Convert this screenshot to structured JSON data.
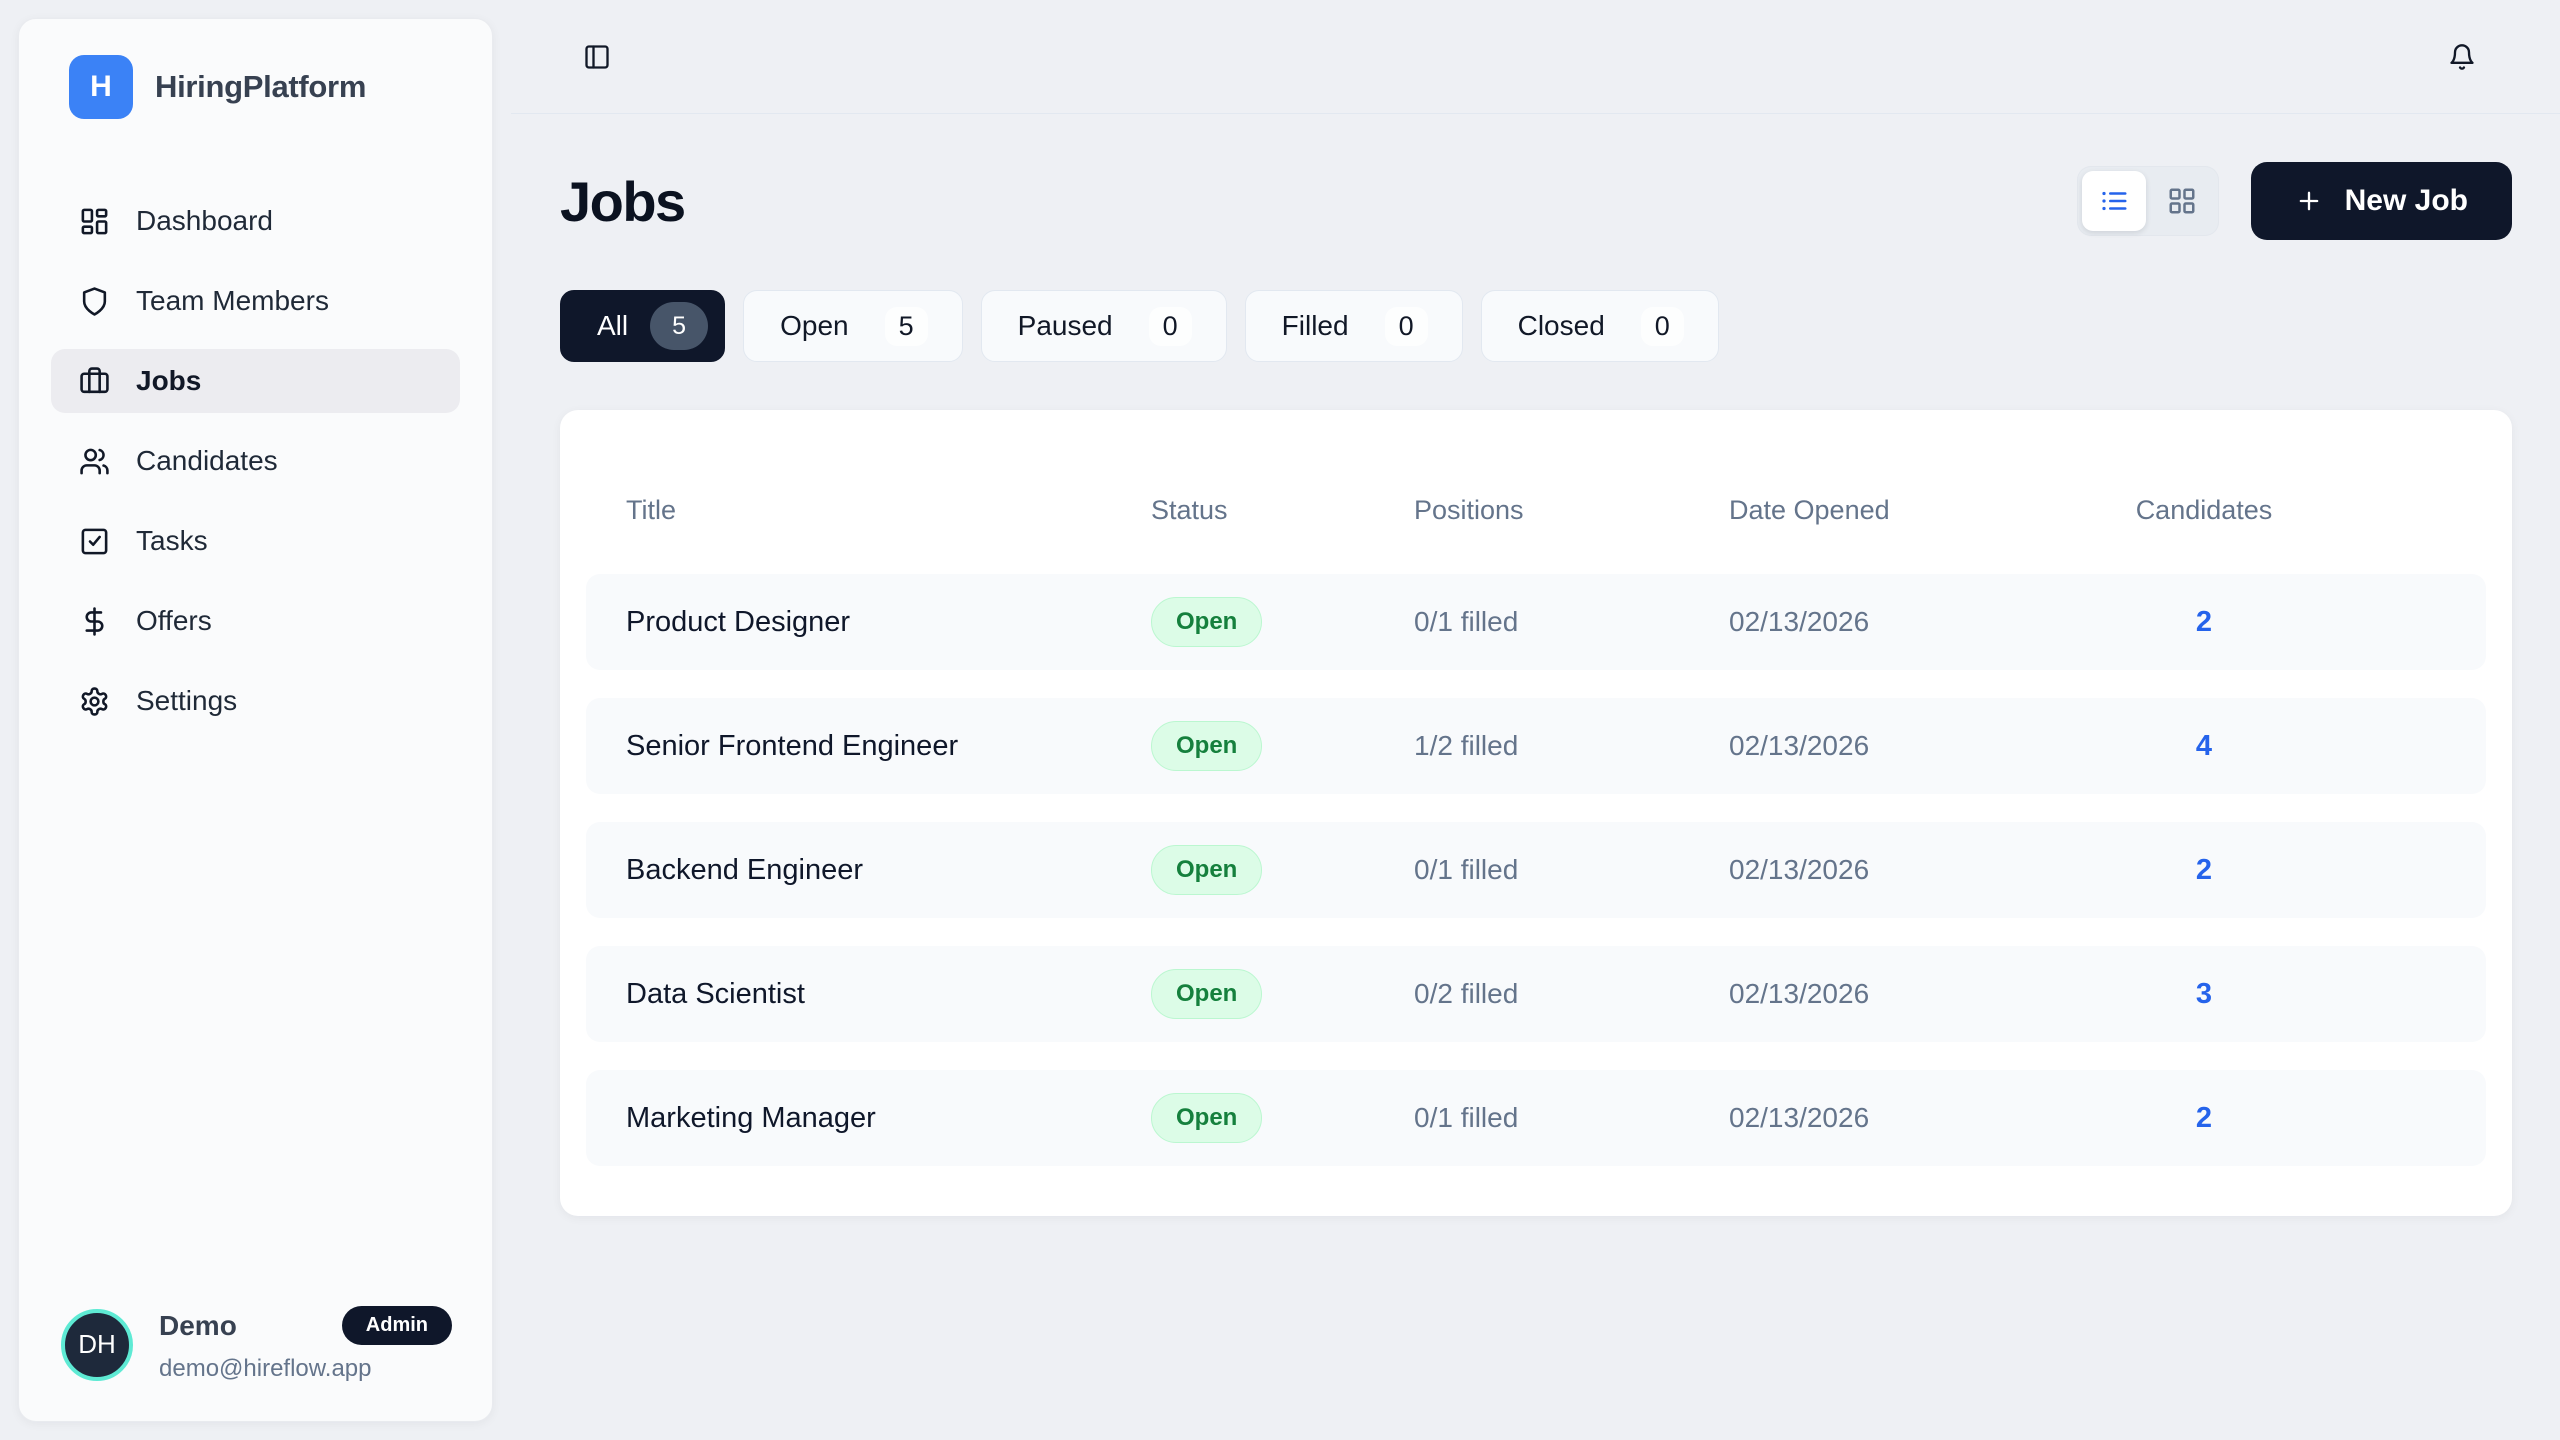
{
  "app": {
    "name": "HiringPlatform",
    "logo_letter": "H"
  },
  "colors": {
    "brand_blue": "#3b82f6",
    "dark_navy": "#0f172a",
    "link_blue": "#2563eb",
    "status_open_bg": "#dcfce7",
    "status_open_text": "#15803d",
    "avatar_ring": "#5eead4"
  },
  "sidebar": {
    "items": [
      {
        "label": "Dashboard",
        "icon": "layout-dashboard",
        "active": false
      },
      {
        "label": "Team Members",
        "icon": "shield",
        "active": false
      },
      {
        "label": "Jobs",
        "icon": "briefcase",
        "active": true
      },
      {
        "label": "Candidates",
        "icon": "users",
        "active": false
      },
      {
        "label": "Tasks",
        "icon": "check-square",
        "active": false
      },
      {
        "label": "Offers",
        "icon": "dollar",
        "active": false
      },
      {
        "label": "Settings",
        "icon": "gear",
        "active": false
      }
    ],
    "user": {
      "initials": "DH",
      "name": "Demo",
      "role_badge": "Admin",
      "email": "demo@hireflow.app"
    }
  },
  "topbar": {
    "left_icon": "panel-left",
    "right_icon": "bell"
  },
  "page": {
    "title": "Jobs",
    "new_job_label": "New Job",
    "view_toggle": {
      "active": "list",
      "options": [
        "list",
        "grid"
      ]
    },
    "filters": [
      {
        "label": "All",
        "count": "5",
        "active": true
      },
      {
        "label": "Open",
        "count": "5",
        "active": false
      },
      {
        "label": "Paused",
        "count": "0",
        "active": false
      },
      {
        "label": "Filled",
        "count": "0",
        "active": false
      },
      {
        "label": "Closed",
        "count": "0",
        "active": false
      }
    ],
    "table": {
      "columns": [
        "Title",
        "Status",
        "Positions",
        "Date Opened",
        "Candidates"
      ],
      "rows": [
        {
          "title": "Product Designer",
          "status": "Open",
          "positions": "0/1 filled",
          "date_opened": "02/13/2026",
          "candidates": "2"
        },
        {
          "title": "Senior Frontend Engineer",
          "status": "Open",
          "positions": "1/2 filled",
          "date_opened": "02/13/2026",
          "candidates": "4"
        },
        {
          "title": "Backend Engineer",
          "status": "Open",
          "positions": "0/1 filled",
          "date_opened": "02/13/2026",
          "candidates": "2"
        },
        {
          "title": "Data Scientist",
          "status": "Open",
          "positions": "0/2 filled",
          "date_opened": "02/13/2026",
          "candidates": "3"
        },
        {
          "title": "Marketing Manager",
          "status": "Open",
          "positions": "0/1 filled",
          "date_opened": "02/13/2026",
          "candidates": "2"
        }
      ]
    }
  }
}
